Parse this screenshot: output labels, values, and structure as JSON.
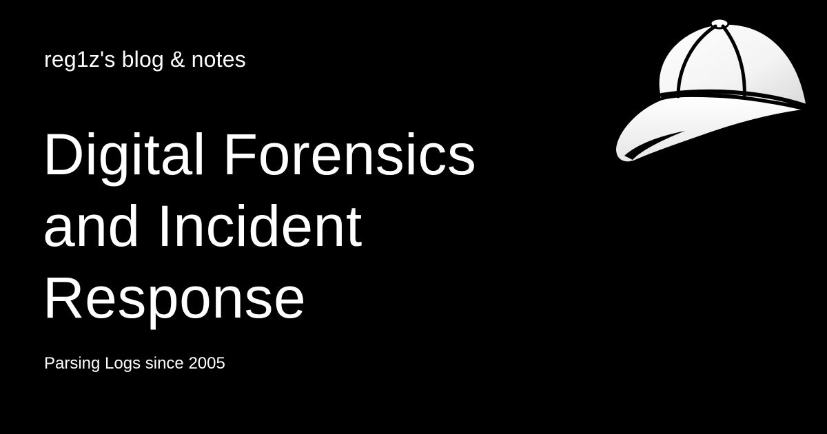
{
  "card": {
    "site_name": "reg1z's blog & notes",
    "title_lines": [
      "Digital Forensics",
      "and Incident",
      "Response"
    ],
    "tagline": "Parsing Logs since 2005",
    "logo_icon": "baseball-cap-icon",
    "colors": {
      "background": "#000000",
      "text": "#ffffff"
    }
  }
}
